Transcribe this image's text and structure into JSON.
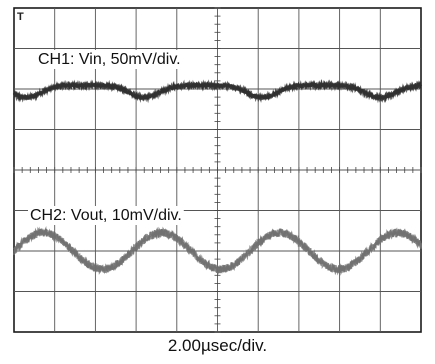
{
  "chart_data": {
    "type": "line",
    "title": "",
    "xlabel": "2.00µsec/div.",
    "ylabel": "",
    "grid": true,
    "x_divisions": 10,
    "y_divisions": 8,
    "x_unit": "µs",
    "xlim": [
      0,
      20
    ],
    "ylim": [
      -4,
      4
    ],
    "trigger_marker": "T",
    "series": [
      {
        "name": "CH1: Vin, 50mV/div.",
        "channel": "CH1",
        "color": "#2e2e2e",
        "offset_div": 2.0,
        "amplitude_div": 0.15,
        "period_us": 5.8,
        "phase_us": 0.6,
        "waveform": "inverted-rectified-ripple",
        "noise_div": 0.04
      },
      {
        "name": "CH2: Vout, 10mV/div.",
        "channel": "CH2",
        "color": "#6f6f6f",
        "offset_div": -2.0,
        "amplitude_div": 0.45,
        "period_us": 5.8,
        "phase_us": 0.0,
        "waveform": "sine",
        "noise_div": 0.1
      }
    ]
  }
}
